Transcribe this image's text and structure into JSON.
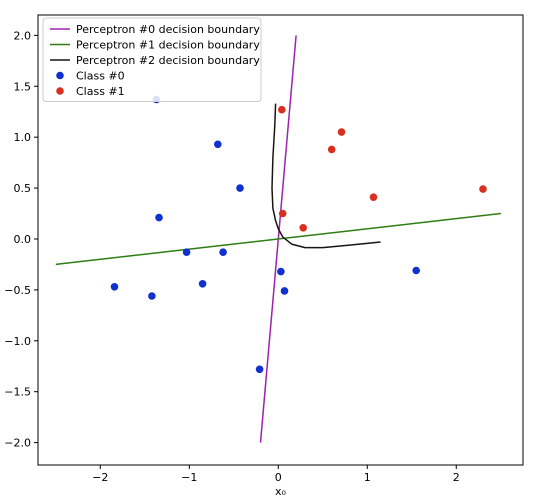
{
  "chart_data": {
    "type": "scatter",
    "title": "",
    "xlabel": "x₀",
    "ylabel": "",
    "xlim": [
      -2.7,
      2.75
    ],
    "ylim": [
      -2.22,
      2.2
    ],
    "xticks": [
      -2,
      -1,
      0,
      1,
      2
    ],
    "yticks": [
      -2.0,
      -1.5,
      -1.0,
      -0.5,
      0.0,
      0.5,
      1.0,
      1.5,
      2.0
    ],
    "grid": false,
    "legend_position": "top-left",
    "lines": [
      {
        "name": "Perceptron #0 decision boundary",
        "color": "#a020b0",
        "points": [
          [
            -0.2,
            -2.0
          ],
          [
            0.2,
            2.0
          ]
        ]
      },
      {
        "name": "Perceptron #1 decision boundary",
        "color": "#2e7d12",
        "points": [
          [
            -2.5,
            -0.25
          ],
          [
            2.5,
            0.25
          ]
        ]
      },
      {
        "name": "Perceptron #2 decision boundary",
        "color": "#1a1410",
        "points": [
          [
            -0.03,
            1.33
          ],
          [
            -0.04,
            1.1
          ],
          [
            -0.06,
            0.8
          ],
          [
            -0.07,
            0.5
          ],
          [
            -0.06,
            0.3
          ],
          [
            -0.03,
            0.18
          ],
          [
            0.0,
            0.1
          ],
          [
            0.05,
            0.02
          ],
          [
            0.15,
            -0.05
          ],
          [
            0.3,
            -0.085
          ],
          [
            0.5,
            -0.085
          ],
          [
            0.8,
            -0.06
          ],
          [
            1.15,
            -0.03
          ]
        ]
      }
    ],
    "series": [
      {
        "name": "Class #0",
        "color": "#1030d0",
        "points": [
          [
            -1.37,
            1.37
          ],
          [
            -0.68,
            0.93
          ],
          [
            -0.43,
            0.5
          ],
          [
            -1.34,
            0.21
          ],
          [
            -1.03,
            -0.13
          ],
          [
            -0.62,
            -0.13
          ],
          [
            -1.84,
            -0.47
          ],
          [
            -0.85,
            -0.44
          ],
          [
            -1.42,
            -0.56
          ],
          [
            0.03,
            -0.32
          ],
          [
            1.55,
            -0.31
          ],
          [
            0.07,
            -0.51
          ],
          [
            -0.21,
            -1.28
          ]
        ]
      },
      {
        "name": "Class #1",
        "color": "#d83020",
        "points": [
          [
            0.04,
            1.27
          ],
          [
            0.71,
            1.05
          ],
          [
            0.6,
            0.88
          ],
          [
            1.07,
            0.41
          ],
          [
            2.3,
            0.49
          ],
          [
            0.05,
            0.25
          ],
          [
            0.28,
            0.11
          ]
        ]
      }
    ]
  }
}
